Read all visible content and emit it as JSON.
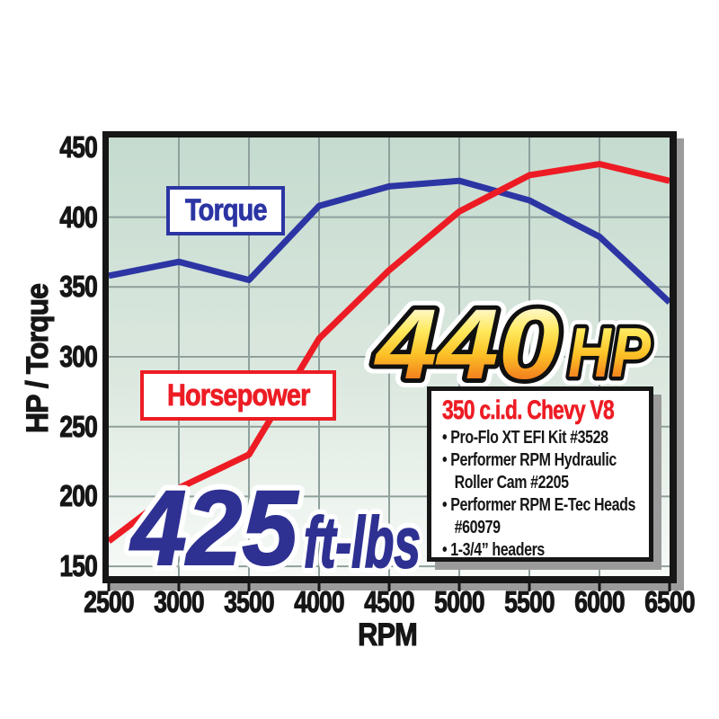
{
  "chart_data": {
    "type": "line",
    "title": "",
    "xlabel": "RPM",
    "ylabel": "HP / Torque",
    "x": [
      2500,
      3000,
      3500,
      4000,
      4500,
      5000,
      5500,
      6000,
      6500
    ],
    "x_ticks": [
      2500,
      3000,
      3500,
      4000,
      4500,
      5000,
      5500,
      6000,
      6500
    ],
    "y_ticks": [
      450,
      400,
      350,
      300,
      250,
      200,
      150
    ],
    "y_gridlines": [
      150,
      200,
      250,
      300,
      350,
      400
    ],
    "xlim": [
      2500,
      6500
    ],
    "ylim": [
      143,
      457
    ],
    "grid": true,
    "legend_position": "inline-labels",
    "series": [
      {
        "name": "Torque",
        "color": "#2c35a3",
        "values": [
          358,
          368,
          355,
          408,
          422,
          426,
          412,
          386,
          339
        ]
      },
      {
        "name": "Horsepower",
        "color": "#ed1c24",
        "values": [
          168,
          206,
          230,
          313,
          362,
          404,
          430,
          438,
          426
        ]
      }
    ]
  },
  "annotations": {
    "torque_label": "Torque",
    "horsepower_label": "Horsepower",
    "hp_callout": {
      "value": "440",
      "unit": "HP"
    },
    "tq_callout": {
      "value": "425",
      "unit": "ft-lbs"
    }
  },
  "spec_box": {
    "title": "350 c.i.d. Chevy V8",
    "items": [
      "Pro-Flo XT EFI Kit #3528",
      "Performer RPM Hydraulic Roller Cam #2205",
      "Performer RPM E-Tec Heads #60979",
      "1-3/4” headers"
    ]
  },
  "colors": {
    "torque_blue": "#2c35a3",
    "hp_red": "#ed1c24",
    "callout_blue": "#2e3192",
    "grid_gray": "#8fa09c",
    "frame_black": "#161616",
    "shadow_gray": "#9b9b9b",
    "plot_bg_top": "#c5dbcf",
    "plot_bg_mid": "#dce8df",
    "plot_bg_bottom": "#f7faf7",
    "gold_top": "#fffbe0",
    "gold_mid1": "#ffe95c",
    "gold_mid2": "#fcc227",
    "gold_bottom": "#f2791d"
  }
}
